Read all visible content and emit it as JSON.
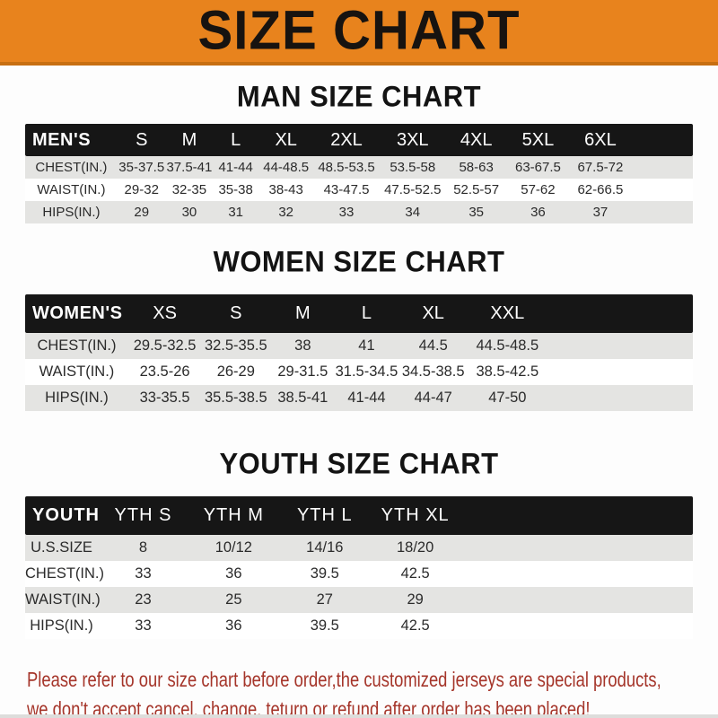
{
  "banner": {
    "title": "SIZE CHART"
  },
  "sections": [
    {
      "title": "MAN SIZE CHART",
      "table": {
        "header_label": "MEN'S",
        "columns": [
          "S",
          "M",
          "L",
          "XL",
          "2XL",
          "3XL",
          "4XL",
          "5XL",
          "6XL"
        ],
        "rows": [
          {
            "label": "CHEST(IN.)",
            "values": [
              "35-37.5",
              "37.5-41",
              "41-44",
              "44-48.5",
              "48.5-53.5",
              "53.5-58",
              "58-63",
              "63-67.5",
              "67.5-72"
            ]
          },
          {
            "label": "WAIST(IN.)",
            "values": [
              "29-32",
              "32-35",
              "35-38",
              "38-43",
              "43-47.5",
              "47.5-52.5",
              "52.5-57",
              "57-62",
              "62-66.5"
            ]
          },
          {
            "label": "HIPS(IN.)",
            "values": [
              "29",
              "30",
              "31",
              "32",
              "33",
              "34",
              "35",
              "36",
              "37"
            ]
          }
        ]
      }
    },
    {
      "title": "WOMEN SIZE CHART",
      "table": {
        "header_label": "WOMEN'S",
        "columns": [
          "XS",
          "S",
          "M",
          "L",
          "XL",
          "XXL"
        ],
        "rows": [
          {
            "label": "CHEST(IN.)",
            "values": [
              "29.5-32.5",
              "32.5-35.5",
              "38",
              "41",
              "44.5",
              "44.5-48.5"
            ]
          },
          {
            "label": "WAIST(IN.)",
            "values": [
              "23.5-26",
              "26-29",
              "29-31.5",
              "31.5-34.5",
              "34.5-38.5",
              "38.5-42.5"
            ]
          },
          {
            "label": "HIPS(IN.)",
            "values": [
              "33-35.5",
              "35.5-38.5",
              "38.5-41",
              "41-44",
              "44-47",
              "47-50"
            ]
          }
        ]
      }
    },
    {
      "title": "YOUTH SIZE CHART",
      "table": {
        "header_label": "YOUTH",
        "columns": [
          "YTH S",
          "YTH M",
          "YTH L",
          "YTH XL"
        ],
        "rows": [
          {
            "label": "U.S.SIZE",
            "values": [
              "8",
              "10/12",
              "14/16",
              "18/20"
            ]
          },
          {
            "label": "CHEST(IN.)",
            "values": [
              "33",
              "36",
              "39.5",
              "42.5"
            ]
          },
          {
            "label": "WAIST(IN.)",
            "values": [
              "23",
              "25",
              "27",
              "29"
            ]
          },
          {
            "label": "HIPS(IN.)",
            "values": [
              "33",
              "36",
              "39.5",
              "42.5"
            ]
          }
        ]
      }
    }
  ],
  "footer": {
    "line1": "Please refer to our size chart before order,the customized jerseys are special products,",
    "line2": "we don't accept cancel, change, teturn or refund after order has been placed!"
  },
  "colors": {
    "banner_orange": "#E8831D",
    "banner_border": "#C76F12",
    "header_bar_black": "#161616",
    "row_gray": "#E4E4E2",
    "row_white": "#FFFFFF",
    "footer_red": "#A5352A"
  }
}
